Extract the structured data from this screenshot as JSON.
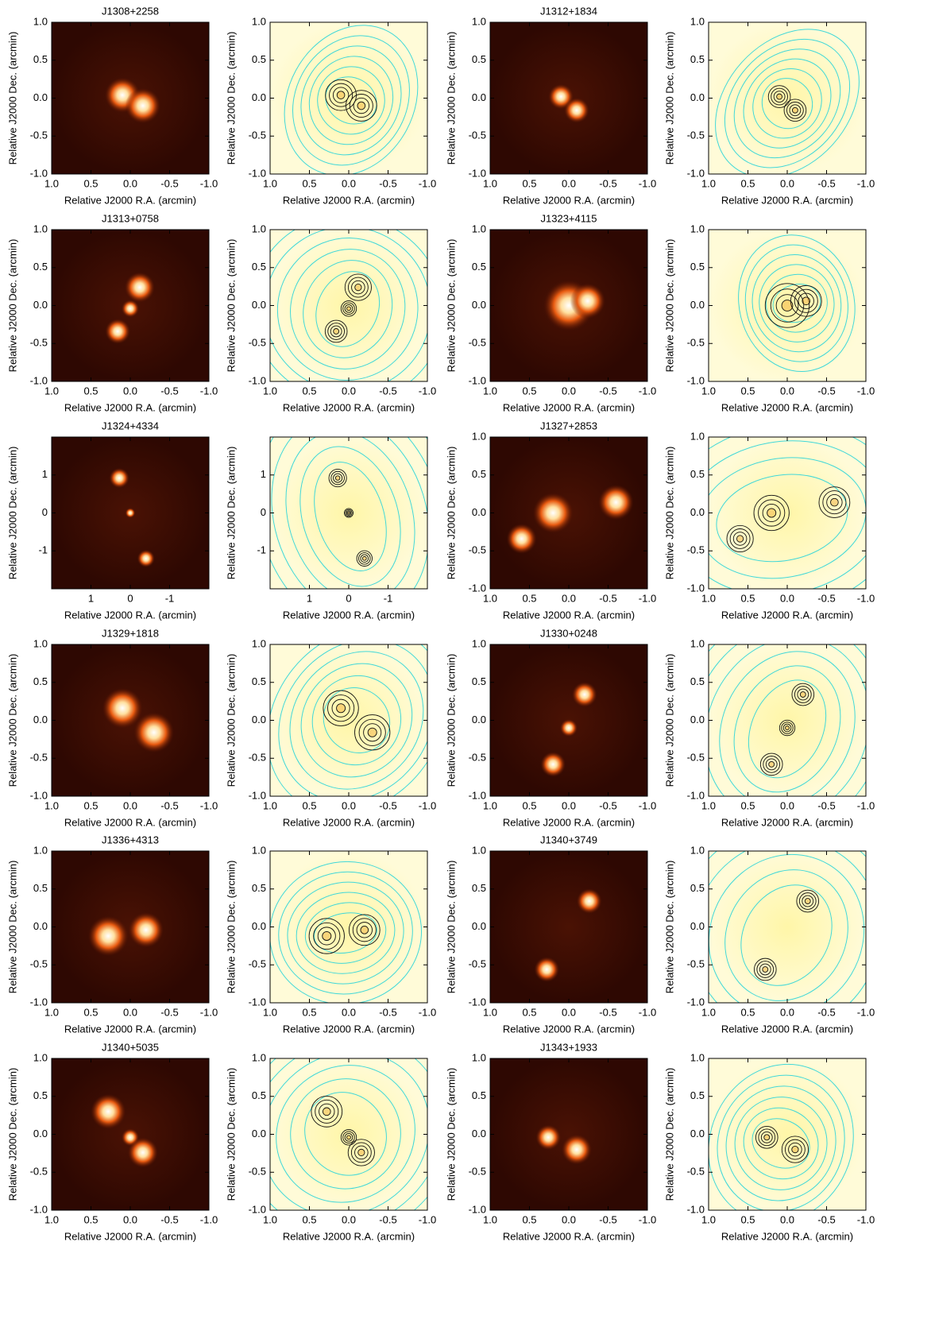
{
  "chart_data": [
    {
      "type": "image",
      "title": "J1308+2258",
      "colormap": "hot",
      "xlim": [
        1,
        -1
      ],
      "ylim": [
        -1,
        1
      ],
      "xticks": [
        {
          "value": 1,
          "label": "1.0"
        },
        0.5,
        {
          "value": 0,
          "label": "0.0"
        },
        -0.5,
        {
          "value": -1,
          "label": "-1.0"
        }
      ],
      "yticks": [
        {
          "value": 1,
          "label": "1.0"
        },
        0.5,
        {
          "value": 0,
          "label": "0.0"
        },
        -0.5,
        {
          "value": -1,
          "label": "-1.0"
        }
      ],
      "xlabel": "Relative J2000 R.A. (arcmin)",
      "ylabel": "Relative J2000 Dec. (arcmin)"
    },
    {
      "type": "image",
      "colormap": "overlay",
      "xlim": [
        1,
        -1
      ],
      "ylim": [
        -1,
        1
      ],
      "xticks": [
        {
          "value": 1,
          "label": "1.0"
        },
        0.5,
        {
          "value": 0,
          "label": "0.0"
        },
        -0.5,
        {
          "value": -1,
          "label": "-1.0"
        }
      ],
      "yticks": [
        {
          "value": 1,
          "label": "1.0"
        },
        0.5,
        {
          "value": 0,
          "label": "0.0"
        },
        -0.5,
        {
          "value": -1,
          "label": "-1.0"
        }
      ],
      "xlabel": "Relative J2000 R.A. (arcmin)",
      "ylabel": "Relative J2000 Dec. (arcmin)"
    },
    {
      "type": "image",
      "title": "J1312+1834",
      "colormap": "hot",
      "xlim": [
        1,
        -1
      ],
      "ylim": [
        -1,
        1
      ],
      "xticks": [
        {
          "value": 1,
          "label": "1.0"
        },
        0.5,
        {
          "value": 0,
          "label": "0.0"
        },
        -0.5,
        {
          "value": -1,
          "label": "-1.0"
        }
      ],
      "yticks": [
        {
          "value": 1,
          "label": "1.0"
        },
        0.5,
        {
          "value": 0,
          "label": "0.0"
        },
        -0.5,
        {
          "value": -1,
          "label": "-1.0"
        }
      ],
      "xlabel": "Relative J2000 R.A. (arcmin)",
      "ylabel": "Relative J2000 Dec. (arcmin)"
    },
    {
      "type": "image",
      "colormap": "overlay",
      "xlim": [
        1,
        -1
      ],
      "ylim": [
        -1,
        1
      ],
      "xticks": [
        {
          "value": 1,
          "label": "1.0"
        },
        0.5,
        {
          "value": 0,
          "label": "0.0"
        },
        -0.5,
        {
          "value": -1,
          "label": "-1.0"
        }
      ],
      "yticks": [
        {
          "value": 1,
          "label": "1.0"
        },
        0.5,
        {
          "value": 0,
          "label": "0.0"
        },
        -0.5,
        {
          "value": -1,
          "label": "-1.0"
        }
      ],
      "xlabel": "Relative J2000 R.A. (arcmin)",
      "ylabel": "Relative J2000 Dec. (arcmin)"
    },
    {
      "type": "image",
      "title": "J1313+0758",
      "colormap": "hot",
      "xlim": [
        1,
        -1
      ],
      "ylim": [
        -1,
        1
      ],
      "xticks": [
        {
          "value": 1,
          "label": "1.0"
        },
        0.5,
        {
          "value": 0,
          "label": "0.0"
        },
        -0.5,
        {
          "value": -1,
          "label": "-1.0"
        }
      ],
      "yticks": [
        {
          "value": 1,
          "label": "1.0"
        },
        0.5,
        {
          "value": 0,
          "label": "0.0"
        },
        -0.5,
        {
          "value": -1,
          "label": "-1.0"
        }
      ],
      "xlabel": "Relative J2000 R.A. (arcmin)",
      "ylabel": "Relative J2000 Dec. (arcmin)"
    },
    {
      "type": "image",
      "colormap": "overlay",
      "xlim": [
        1,
        -1
      ],
      "ylim": [
        -1,
        1
      ],
      "xticks": [
        {
          "value": 1,
          "label": "1.0"
        },
        0.5,
        {
          "value": 0,
          "label": "0.0"
        },
        -0.5,
        {
          "value": -1,
          "label": "-1.0"
        }
      ],
      "yticks": [
        {
          "value": 1,
          "label": "1.0"
        },
        0.5,
        {
          "value": 0,
          "label": "0.0"
        },
        -0.5,
        {
          "value": -1,
          "label": "-1.0"
        }
      ],
      "xlabel": "Relative J2000 R.A. (arcmin)",
      "ylabel": "Relative J2000 Dec. (arcmin)"
    },
    {
      "type": "image",
      "title": "J1323+4115",
      "colormap": "hot",
      "xlim": [
        1,
        -1
      ],
      "ylim": [
        -1,
        1
      ],
      "xticks": [
        {
          "value": 1,
          "label": "1.0"
        },
        0.5,
        {
          "value": 0,
          "label": "0.0"
        },
        -0.5,
        {
          "value": -1,
          "label": "-1.0"
        }
      ],
      "yticks": [
        {
          "value": 1,
          "label": "1.0"
        },
        0.5,
        {
          "value": 0,
          "label": "0.0"
        },
        -0.5,
        {
          "value": -1,
          "label": "-1.0"
        }
      ],
      "xlabel": "Relative J2000 R.A. (arcmin)",
      "ylabel": "Relative J2000 Dec. (arcmin)"
    },
    {
      "type": "image",
      "colormap": "overlay",
      "xlim": [
        1,
        -1
      ],
      "ylim": [
        -1,
        1
      ],
      "xticks": [
        {
          "value": 1,
          "label": "1.0"
        },
        0.5,
        {
          "value": 0,
          "label": "0.0"
        },
        -0.5,
        {
          "value": -1,
          "label": "-1.0"
        }
      ],
      "yticks": [
        {
          "value": 1,
          "label": "1.0"
        },
        0.5,
        {
          "value": 0,
          "label": "0.0"
        },
        -0.5,
        {
          "value": -1,
          "label": "-1.0"
        }
      ],
      "xlabel": "Relative J2000 R.A. (arcmin)",
      "ylabel": "Relative J2000 Dec. (arcmin)"
    },
    {
      "type": "image",
      "title": "J1324+4334",
      "colormap": "hot",
      "xlim": [
        2,
        -2
      ],
      "ylim": [
        -2,
        2
      ],
      "xticks": [
        1,
        0,
        -1
      ],
      "yticks": [
        1,
        0,
        -1
      ],
      "xlabel": "Relative J2000 R.A. (arcmin)",
      "ylabel": "Relative J2000 Dec. (arcmin)"
    },
    {
      "type": "image",
      "colormap": "overlay",
      "xlim": [
        2,
        -2
      ],
      "ylim": [
        -2,
        2
      ],
      "xticks": [
        1,
        0,
        -1
      ],
      "yticks": [
        1,
        0,
        -1
      ],
      "xlabel": "Relative J2000 R.A. (arcmin)",
      "ylabel": "Relative J2000 Dec. (arcmin)"
    },
    {
      "type": "image",
      "title": "J1327+2853",
      "colormap": "hot",
      "xlim": [
        1,
        -1
      ],
      "ylim": [
        -1,
        1
      ],
      "xticks": [
        {
          "value": 1,
          "label": "1.0"
        },
        0.5,
        {
          "value": 0,
          "label": "0.0"
        },
        -0.5,
        {
          "value": -1,
          "label": "-1.0"
        }
      ],
      "yticks": [
        {
          "value": 1,
          "label": "1.0"
        },
        0.5,
        {
          "value": 0,
          "label": "0.0"
        },
        -0.5,
        {
          "value": -1,
          "label": "-1.0"
        }
      ],
      "xlabel": "Relative J2000 R.A. (arcmin)",
      "ylabel": "Relative J2000 Dec. (arcmin)"
    },
    {
      "type": "image",
      "colormap": "overlay",
      "xlim": [
        1,
        -1
      ],
      "ylim": [
        -1,
        1
      ],
      "xticks": [
        {
          "value": 1,
          "label": "1.0"
        },
        0.5,
        {
          "value": 0,
          "label": "0.0"
        },
        -0.5,
        {
          "value": -1,
          "label": "-1.0"
        }
      ],
      "yticks": [
        {
          "value": 1,
          "label": "1.0"
        },
        0.5,
        {
          "value": 0,
          "label": "0.0"
        },
        -0.5,
        {
          "value": -1,
          "label": "-1.0"
        }
      ],
      "xlabel": "Relative J2000 R.A. (arcmin)",
      "ylabel": "Relative J2000 Dec. (arcmin)"
    },
    {
      "type": "image",
      "title": "J1329+1818",
      "colormap": "hot",
      "xlim": [
        1,
        -1
      ],
      "ylim": [
        -1,
        1
      ],
      "xticks": [
        {
          "value": 1,
          "label": "1.0"
        },
        0.5,
        {
          "value": 0,
          "label": "0.0"
        },
        -0.5,
        {
          "value": -1,
          "label": "-1.0"
        }
      ],
      "yticks": [
        {
          "value": 1,
          "label": "1.0"
        },
        0.5,
        {
          "value": 0,
          "label": "0.0"
        },
        -0.5,
        {
          "value": -1,
          "label": "-1.0"
        }
      ],
      "xlabel": "Relative J2000 R.A. (arcmin)",
      "ylabel": "Relative J2000 Dec. (arcmin)"
    },
    {
      "type": "image",
      "colormap": "overlay",
      "xlim": [
        1,
        -1
      ],
      "ylim": [
        -1,
        1
      ],
      "xticks": [
        {
          "value": 1,
          "label": "1.0"
        },
        0.5,
        {
          "value": 0,
          "label": "0.0"
        },
        -0.5,
        {
          "value": -1,
          "label": "-1.0"
        }
      ],
      "yticks": [
        {
          "value": 1,
          "label": "1.0"
        },
        0.5,
        {
          "value": 0,
          "label": "0.0"
        },
        -0.5,
        {
          "value": -1,
          "label": "-1.0"
        }
      ],
      "xlabel": "Relative J2000 R.A. (arcmin)",
      "ylabel": "Relative J2000 Dec. (arcmin)"
    },
    {
      "type": "image",
      "title": "J1330+0248",
      "colormap": "hot",
      "xlim": [
        1,
        -1
      ],
      "ylim": [
        -1,
        1
      ],
      "xticks": [
        {
          "value": 1,
          "label": "1.0"
        },
        0.5,
        {
          "value": 0,
          "label": "0.0"
        },
        -0.5,
        {
          "value": -1,
          "label": "-1.0"
        }
      ],
      "yticks": [
        {
          "value": 1,
          "label": "1.0"
        },
        0.5,
        {
          "value": 0,
          "label": "0.0"
        },
        -0.5,
        {
          "value": -1,
          "label": "-1.0"
        }
      ],
      "xlabel": "Relative J2000 R.A. (arcmin)",
      "ylabel": "Relative J2000 Dec. (arcmin)"
    },
    {
      "type": "image",
      "colormap": "overlay",
      "xlim": [
        1,
        -1
      ],
      "ylim": [
        -1,
        1
      ],
      "xticks": [
        {
          "value": 1,
          "label": "1.0"
        },
        0.5,
        {
          "value": 0,
          "label": "0.0"
        },
        -0.5,
        {
          "value": -1,
          "label": "-1.0"
        }
      ],
      "yticks": [
        {
          "value": 1,
          "label": "1.0"
        },
        0.5,
        {
          "value": 0,
          "label": "0.0"
        },
        -0.5,
        {
          "value": -1,
          "label": "-1.0"
        }
      ],
      "xlabel": "Relative J2000 R.A. (arcmin)",
      "ylabel": "Relative J2000 Dec. (arcmin)"
    },
    {
      "type": "image",
      "title": "J1336+4313",
      "colormap": "hot",
      "xlim": [
        1,
        -1
      ],
      "ylim": [
        -1,
        1
      ],
      "xticks": [
        {
          "value": 1,
          "label": "1.0"
        },
        0.5,
        {
          "value": 0,
          "label": "0.0"
        },
        -0.5,
        {
          "value": -1,
          "label": "-1.0"
        }
      ],
      "yticks": [
        {
          "value": 1,
          "label": "1.0"
        },
        0.5,
        {
          "value": 0,
          "label": "0.0"
        },
        -0.5,
        {
          "value": -1,
          "label": "-1.0"
        }
      ],
      "xlabel": "Relative J2000 R.A. (arcmin)",
      "ylabel": "Relative J2000 Dec. (arcmin)"
    },
    {
      "type": "image",
      "colormap": "overlay",
      "xlim": [
        1,
        -1
      ],
      "ylim": [
        -1,
        1
      ],
      "xticks": [
        {
          "value": 1,
          "label": "1.0"
        },
        0.5,
        {
          "value": 0,
          "label": "0.0"
        },
        -0.5,
        {
          "value": -1,
          "label": "-1.0"
        }
      ],
      "yticks": [
        {
          "value": 1,
          "label": "1.0"
        },
        0.5,
        {
          "value": 0,
          "label": "0.0"
        },
        -0.5,
        {
          "value": -1,
          "label": "-1.0"
        }
      ],
      "xlabel": "Relative J2000 R.A. (arcmin)",
      "ylabel": "Relative J2000 Dec. (arcmin)"
    },
    {
      "type": "image",
      "title": "J1340+3749",
      "colormap": "hot",
      "xlim": [
        1,
        -1
      ],
      "ylim": [
        -1,
        1
      ],
      "xticks": [
        {
          "value": 1,
          "label": "1.0"
        },
        0.5,
        {
          "value": 0,
          "label": "0.0"
        },
        -0.5,
        {
          "value": -1,
          "label": "-1.0"
        }
      ],
      "yticks": [
        {
          "value": 1,
          "label": "1.0"
        },
        0.5,
        {
          "value": 0,
          "label": "0.0"
        },
        -0.5,
        {
          "value": -1,
          "label": "-1.0"
        }
      ],
      "xlabel": "Relative J2000 R.A. (arcmin)",
      "ylabel": "Relative J2000 Dec. (arcmin)"
    },
    {
      "type": "image",
      "colormap": "overlay",
      "xlim": [
        1,
        -1
      ],
      "ylim": [
        -1,
        1
      ],
      "xticks": [
        {
          "value": 1,
          "label": "1.0"
        },
        0.5,
        {
          "value": 0,
          "label": "0.0"
        },
        -0.5,
        {
          "value": -1,
          "label": "-1.0"
        }
      ],
      "yticks": [
        {
          "value": 1,
          "label": "1.0"
        },
        0.5,
        {
          "value": 0,
          "label": "0.0"
        },
        -0.5,
        {
          "value": -1,
          "label": "-1.0"
        }
      ],
      "xlabel": "Relative J2000 R.A. (arcmin)",
      "ylabel": "Relative J2000 Dec. (arcmin)"
    },
    {
      "type": "image",
      "title": "J1340+5035",
      "colormap": "hot",
      "xlim": [
        1,
        -1
      ],
      "ylim": [
        -1,
        1
      ],
      "xticks": [
        {
          "value": 1,
          "label": "1.0"
        },
        0.5,
        {
          "value": 0,
          "label": "0.0"
        },
        -0.5,
        {
          "value": -1,
          "label": "-1.0"
        }
      ],
      "yticks": [
        {
          "value": 1,
          "label": "1.0"
        },
        0.5,
        {
          "value": 0,
          "label": "0.0"
        },
        -0.5,
        {
          "value": -1,
          "label": "-1.0"
        }
      ],
      "xlabel": "Relative J2000 R.A. (arcmin)",
      "ylabel": "Relative J2000 Dec. (arcmin)"
    },
    {
      "type": "image",
      "colormap": "overlay",
      "xlim": [
        1,
        -1
      ],
      "ylim": [
        -1,
        1
      ],
      "xticks": [
        {
          "value": 1,
          "label": "1.0"
        },
        0.5,
        {
          "value": 0,
          "label": "0.0"
        },
        -0.5,
        {
          "value": -1,
          "label": "-1.0"
        }
      ],
      "yticks": [
        {
          "value": 1,
          "label": "1.0"
        },
        0.5,
        {
          "value": 0,
          "label": "0.0"
        },
        -0.5,
        {
          "value": -1,
          "label": "-1.0"
        }
      ],
      "xlabel": "Relative J2000 R.A. (arcmin)",
      "ylabel": "Relative J2000 Dec. (arcmin)"
    },
    {
      "type": "image",
      "title": "J1343+1933",
      "colormap": "hot",
      "xlim": [
        1,
        -1
      ],
      "ylim": [
        -1,
        1
      ],
      "xticks": [
        {
          "value": 1,
          "label": "1.0"
        },
        0.5,
        {
          "value": 0,
          "label": "0.0"
        },
        -0.5,
        {
          "value": -1,
          "label": "-1.0"
        }
      ],
      "yticks": [
        {
          "value": 1,
          "label": "1.0"
        },
        0.5,
        {
          "value": 0,
          "label": "0.0"
        },
        -0.5,
        {
          "value": -1,
          "label": "-1.0"
        }
      ],
      "xlabel": "Relative J2000 R.A. (arcmin)",
      "ylabel": "Relative J2000 Dec. (arcmin)"
    },
    {
      "type": "image",
      "colormap": "overlay",
      "xlim": [
        1,
        -1
      ],
      "ylim": [
        -1,
        1
      ],
      "xticks": [
        {
          "value": 1,
          "label": "1.0"
        },
        0.5,
        {
          "value": 0,
          "label": "0.0"
        },
        -0.5,
        {
          "value": -1,
          "label": "-1.0"
        }
      ],
      "yticks": [
        {
          "value": 1,
          "label": "1.0"
        },
        0.5,
        {
          "value": 0,
          "label": "0.0"
        },
        -0.5,
        {
          "value": -1,
          "label": "-1.0"
        }
      ],
      "xlabel": "Relative J2000 R.A. (arcmin)",
      "ylabel": "Relative J2000 Dec. (arcmin)"
    }
  ]
}
